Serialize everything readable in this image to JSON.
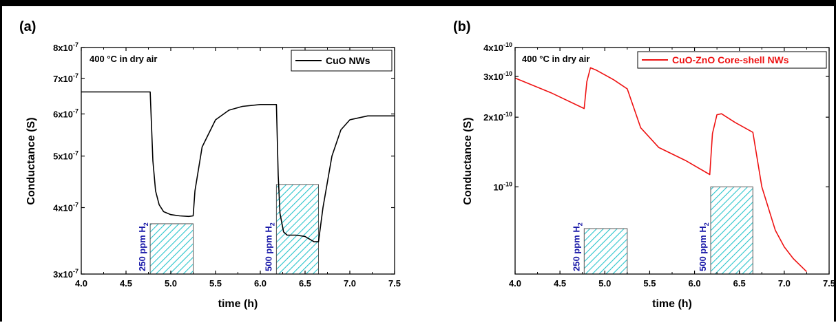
{
  "chart_data": [
    {
      "panel_label": "(a)",
      "type": "line",
      "condition": "400 °C in dry air",
      "xlabel": "time (h)",
      "ylabel": "Conductance (S)",
      "xlim": [
        4.0,
        7.5
      ],
      "ylim": [
        3e-07,
        8e-07
      ],
      "yscale": "log",
      "x_ticks": [
        "4.0",
        "4.5",
        "5.0",
        "5.5",
        "6.0",
        "6.5",
        "7.0",
        "7.5"
      ],
      "y_ticks": [
        {
          "mant": "3x10",
          "exp": "-7"
        },
        {
          "mant": "4x10",
          "exp": "-7"
        },
        {
          "mant": "5x10",
          "exp": "-7"
        },
        {
          "mant": "6x10",
          "exp": "-7"
        },
        {
          "mant": "7x10",
          "exp": "-7"
        },
        {
          "mant": "8x10",
          "exp": "-7"
        }
      ],
      "legend_position": "top-right",
      "series": [
        {
          "name": "CuO NWs",
          "color": "#000000",
          "x": [
            4.0,
            4.5,
            4.77,
            4.8,
            4.83,
            4.87,
            4.92,
            5.0,
            5.1,
            5.2,
            5.25,
            5.27,
            5.35,
            5.5,
            5.65,
            5.8,
            6.0,
            6.18,
            6.2,
            6.22,
            6.26,
            6.3,
            6.4,
            6.5,
            6.6,
            6.65,
            6.7,
            6.8,
            6.9,
            7.0,
            7.2,
            7.5
          ],
          "y": [
            6.6e-07,
            6.6e-07,
            6.6e-07,
            4.9e-07,
            4.3e-07,
            4.05e-07,
            3.93e-07,
            3.88e-07,
            3.86e-07,
            3.85e-07,
            3.86e-07,
            4.3e-07,
            5.2e-07,
            5.85e-07,
            6.1e-07,
            6.2e-07,
            6.25e-07,
            6.25e-07,
            4.6e-07,
            3.9e-07,
            3.6e-07,
            3.55e-07,
            3.55e-07,
            3.53e-07,
            3.45e-07,
            3.45e-07,
            4e-07,
            5e-07,
            5.6e-07,
            5.85e-07,
            5.95e-07,
            5.95e-07
          ]
        }
      ],
      "exposures": [
        {
          "label": "250 ppm H",
          "sub": "2",
          "x_start": 4.77,
          "x_end": 5.25,
          "level": 3.73e-07
        },
        {
          "label": "500 ppm H",
          "sub": "2",
          "x_start": 6.18,
          "x_end": 6.65,
          "level": 4.42e-07
        }
      ],
      "exposure_color": "#29c4cc",
      "label_color": "#1a1aa8"
    },
    {
      "panel_label": "(b)",
      "type": "line",
      "condition": "400 °C in dry air",
      "xlabel": "time (h)",
      "ylabel": "Conductance (S)",
      "xlim": [
        4.0,
        7.5
      ],
      "ylim": [
        4.2e-11,
        4e-10
      ],
      "yscale": "log",
      "x_ticks": [
        "4.0",
        "4.5",
        "5.0",
        "5.5",
        "6.0",
        "6.5",
        "7.0",
        "7.5"
      ],
      "y_ticks": [
        {
          "value": 1e-10,
          "mant": "10",
          "exp": "-10"
        },
        {
          "value": 2e-10,
          "mant": "2x10",
          "exp": "-10"
        },
        {
          "value": 3e-10,
          "mant": "3x10",
          "exp": "-10"
        },
        {
          "value": 4e-10,
          "mant": "4x10",
          "exp": "-10"
        }
      ],
      "legend_position": "top-right",
      "series": [
        {
          "name": "CuO-ZnO Core-shell NWs",
          "color": "#ee1111",
          "x": [
            4.0,
            4.4,
            4.77,
            4.8,
            4.84,
            4.9,
            5.1,
            5.25,
            5.4,
            5.6,
            5.9,
            6.17,
            6.2,
            6.25,
            6.3,
            6.45,
            6.65,
            6.75,
            6.9,
            7.0,
            7.1,
            7.25
          ],
          "y": [
            2.95e-10,
            2.55e-10,
            2.18e-10,
            2.85e-10,
            3.27e-10,
            3.2e-10,
            2.9e-10,
            2.65e-10,
            1.8e-10,
            1.48e-10,
            1.3e-10,
            1.13e-10,
            1.7e-10,
            2.05e-10,
            2.07e-10,
            1.9e-10,
            1.72e-10,
            1e-10,
            6.5e-11,
            5.5e-11,
            4.9e-11,
            4.3e-11
          ]
        }
      ],
      "exposures": [
        {
          "label": "250 ppm H",
          "sub": "2",
          "x_start": 4.77,
          "x_end": 5.25,
          "level": 6.6e-11
        },
        {
          "label": "500 ppm H",
          "sub": "2",
          "x_start": 6.18,
          "x_end": 6.65,
          "level": 1e-10
        }
      ],
      "exposure_color": "#29c4cc",
      "label_color": "#1a1aa8"
    }
  ]
}
